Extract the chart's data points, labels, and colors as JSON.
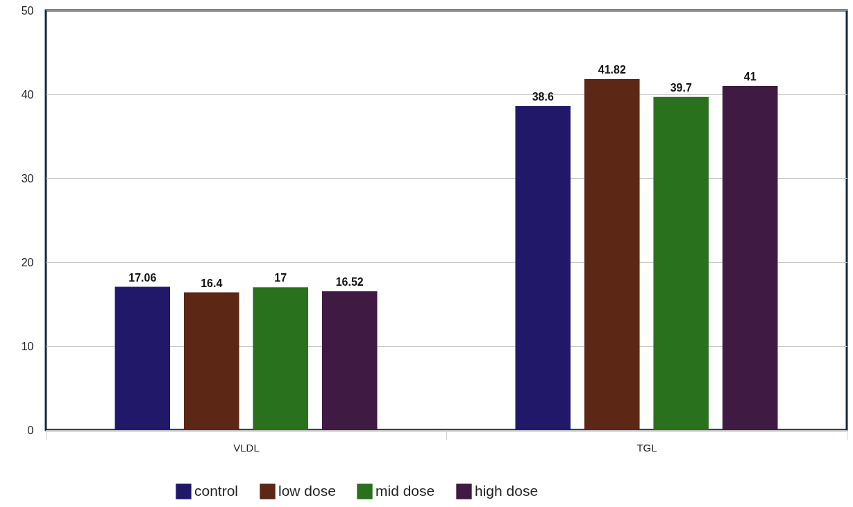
{
  "chart_data": {
    "type": "bar",
    "categories": [
      "VLDL",
      "TGL"
    ],
    "series": [
      {
        "name": "control",
        "color": "#22186a",
        "values": [
          17.06,
          38.6
        ]
      },
      {
        "name": "low dose",
        "color": "#5c2714",
        "values": [
          16.4,
          41.82
        ]
      },
      {
        "name": "mid dose",
        "color": "#2a711e",
        "values": [
          17,
          39.7
        ]
      },
      {
        "name": "high dose",
        "color": "#3f1a42",
        "values": [
          16.52,
          41
        ]
      }
    ],
    "ylim": [
      0,
      50
    ],
    "yticks": [
      0,
      10,
      20,
      30,
      40,
      50
    ],
    "grid": "y",
    "legend": "bottom",
    "data_labels": true
  }
}
